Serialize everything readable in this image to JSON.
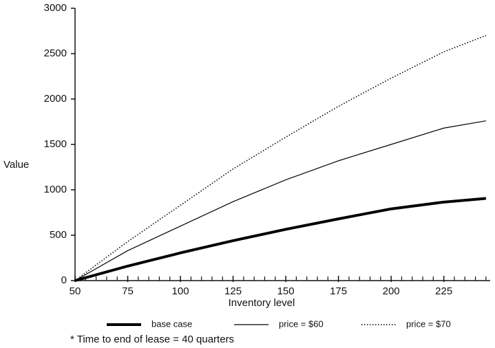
{
  "chart_data": {
    "type": "line",
    "x_label": "Inventory level",
    "y_label": "Value",
    "x": [
      50,
      75,
      100,
      125,
      150,
      175,
      200,
      225,
      245
    ],
    "series": [
      {
        "name": "base case",
        "color": "#000000",
        "style": "thick",
        "values": [
          0,
          160,
          305,
          440,
          565,
          680,
          790,
          865,
          905
        ]
      },
      {
        "name": "price = $60",
        "color": "#000000",
        "style": "solid",
        "values": [
          0,
          330,
          600,
          870,
          1110,
          1320,
          1500,
          1680,
          1760
        ]
      },
      {
        "name": "price = $70",
        "color": "#000000",
        "style": "dotted",
        "values": [
          0,
          430,
          830,
          1230,
          1580,
          1920,
          2230,
          2520,
          2700
        ]
      }
    ],
    "xlim": [
      50,
      247
    ],
    "ylim": [
      0,
      3000
    ],
    "xticks": [
      50,
      75,
      100,
      125,
      150,
      175,
      200,
      225
    ],
    "xminorticks": [
      55,
      60,
      65,
      70,
      80,
      85,
      90,
      95,
      105,
      110,
      115,
      120,
      130,
      135,
      140,
      145,
      155,
      160,
      165,
      170,
      180,
      185,
      190,
      195,
      205,
      210,
      215,
      220,
      230,
      235,
      240,
      245
    ],
    "yticks": [
      0,
      500,
      1000,
      1500,
      2000,
      2500,
      3000
    ],
    "note": "* Time to end of lease = 40 quarters"
  }
}
